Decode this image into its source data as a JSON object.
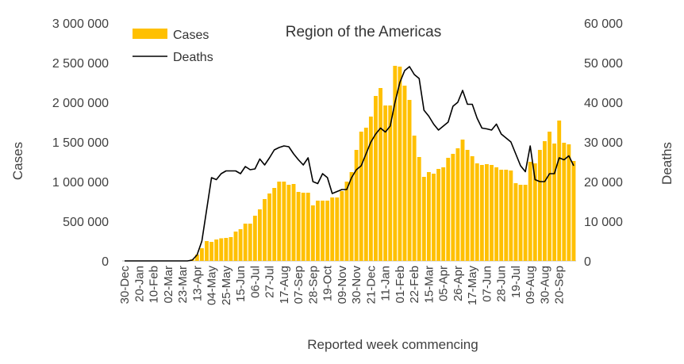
{
  "chart_data": {
    "type": "bar+line",
    "title": "Region of the Americas",
    "xlabel": "Reported week commencing",
    "ylabel_left": "Cases",
    "ylabel_right": "Deaths",
    "ylim_left": [
      0,
      3000000
    ],
    "ylim_right": [
      0,
      60000
    ],
    "yticks_left": [
      "0",
      "500 000",
      "1 000 000",
      "1 500 000",
      "2 000 000",
      "2 500 000",
      "3 000 000"
    ],
    "yticks_right": [
      "0",
      "10 000",
      "20 000",
      "30 000",
      "40 000",
      "50 000",
      "60 000"
    ],
    "x_tick_labels": [
      "30-Dec",
      "20-Jan",
      "10-Feb",
      "02-Mar",
      "23-Mar",
      "13-Apr",
      "04-May",
      "25-May",
      "15-Jun",
      "06-Jul",
      "27-Jul",
      "17-Aug",
      "07-Sep",
      "28-Sep",
      "19-Oct",
      "09-Nov",
      "30-Nov",
      "21-Dec",
      "11-Jan",
      "01-Feb",
      "22-Feb",
      "15-Mar",
      "05-Apr",
      "26-Apr",
      "17-May",
      "07-Jun",
      "28-Jun",
      "19-Jul",
      "09-Aug",
      "30-Aug",
      "20-Sep"
    ],
    "legend": [
      "Cases",
      "Deaths"
    ],
    "legend_position": "top-left",
    "colors": {
      "cases": "#FFC000",
      "deaths": "#000000"
    },
    "series": [
      {
        "name": "Cases",
        "kind": "bar",
        "axis": "left",
        "values": [
          0,
          0,
          0,
          0,
          0,
          0,
          0,
          0,
          0,
          0,
          0,
          0,
          0,
          5000,
          20000,
          80000,
          160000,
          250000,
          240000,
          270000,
          285000,
          290000,
          300000,
          370000,
          400000,
          470000,
          470000,
          570000,
          650000,
          780000,
          850000,
          920000,
          1000000,
          1000000,
          960000,
          970000,
          870000,
          860000,
          860000,
          700000,
          760000,
          760000,
          760000,
          800000,
          800000,
          880000,
          1000000,
          1120000,
          1400000,
          1630000,
          1680000,
          1820000,
          2080000,
          2180000,
          1960000,
          1960000,
          2460000,
          2450000,
          2210000,
          2030000,
          1580000,
          1310000,
          1060000,
          1120000,
          1100000,
          1160000,
          1180000,
          1300000,
          1350000,
          1420000,
          1530000,
          1400000,
          1320000,
          1230000,
          1210000,
          1220000,
          1210000,
          1180000,
          1150000,
          1150000,
          1140000,
          980000,
          960000,
          960000,
          1250000,
          1230000,
          1400000,
          1510000,
          1630000,
          1480000,
          1770000,
          1490000,
          1470000,
          1260000
        ]
      },
      {
        "name": "Deaths",
        "kind": "line",
        "axis": "right",
        "values": [
          0,
          0,
          0,
          0,
          0,
          0,
          0,
          0,
          0,
          0,
          0,
          0,
          0,
          0,
          200,
          1500,
          5000,
          13000,
          21000,
          20500,
          22000,
          22700,
          22700,
          22700,
          22000,
          23800,
          23000,
          23200,
          25700,
          24200,
          26000,
          28000,
          28600,
          29000,
          28800,
          27000,
          25500,
          24200,
          26000,
          20000,
          19500,
          22000,
          21000,
          17000,
          17500,
          18000,
          18000,
          21000,
          23000,
          24000,
          27000,
          30000,
          32000,
          33500,
          32500,
          34000,
          40000,
          45000,
          48000,
          49000,
          47000,
          46000,
          38000,
          36500,
          34500,
          33000,
          34000,
          35000,
          39000,
          40000,
          43000,
          39500,
          39500,
          36000,
          33500,
          33300,
          33000,
          34500,
          32000,
          31000,
          30000,
          27000,
          24000,
          22500,
          29000,
          20500,
          20000,
          20000,
          22000,
          22000,
          26000,
          25500,
          26500,
          24000
        ]
      }
    ]
  }
}
